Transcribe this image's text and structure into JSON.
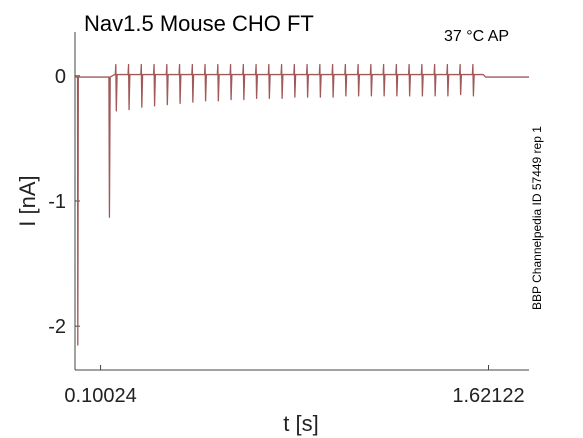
{
  "chart_data": {
    "type": "line",
    "title": "Nav1.5  Mouse  CHO FT",
    "condition": "37 °C  AP",
    "side_label": "BBP Channelpedia ID 57449 rep 1",
    "xlabel": "t [s]",
    "ylabel": "I [nA]",
    "x_ticks": [
      0.10024,
      1.62122
    ],
    "x_tick_labels": [
      "0.10024",
      "1.62122"
    ],
    "y_ticks": [
      -2,
      -1,
      0
    ],
    "y_tick_labels": [
      "-2",
      "-1",
      "0"
    ],
    "xlim": [
      0.0,
      1.78
    ],
    "ylim": [
      -2.35,
      0.35
    ],
    "grid": false,
    "series_color": "#a05858",
    "baseline": -0.01,
    "first_spike": {
      "t": 0.01,
      "i": -2.15
    },
    "second_spike": {
      "t": 0.135,
      "i": -1.13
    },
    "train_start": 0.16,
    "train_interval": 0.05,
    "train_count": 29,
    "train_peaks": [
      -0.28,
      -0.27,
      -0.25,
      -0.24,
      -0.23,
      -0.22,
      -0.21,
      -0.2,
      -0.2,
      -0.19,
      -0.19,
      -0.18,
      -0.18,
      -0.18,
      -0.17,
      -0.17,
      -0.17,
      -0.17,
      -0.16,
      -0.16,
      -0.16,
      -0.16,
      -0.16,
      -0.16,
      -0.16,
      -0.16,
      -0.16,
      -0.15,
      -0.16
    ],
    "train_plateau": 0.01,
    "train_end": 1.6,
    "end_time": 1.78
  }
}
